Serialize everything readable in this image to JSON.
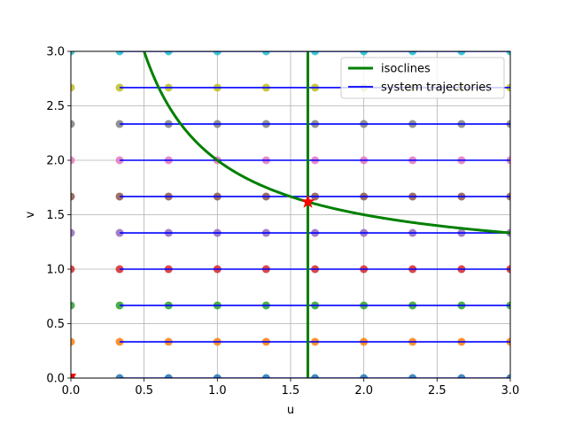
{
  "chart_data": {
    "type": "line",
    "xlabel": "u",
    "ylabel": "v",
    "xlim": [
      0,
      3
    ],
    "ylim": [
      0,
      3
    ],
    "xticks": [
      "0.0",
      "0.5",
      "1.0",
      "1.5",
      "2.0",
      "2.5",
      "3.0"
    ],
    "yticks": [
      "0.0",
      "0.5",
      "1.0",
      "1.5",
      "2.0",
      "2.5",
      "3.0"
    ],
    "grid": true,
    "legend_position": "top-right",
    "legend": [
      {
        "label": "isoclines",
        "color": "#008000"
      },
      {
        "label": "system trajectories",
        "color": "#0000ff"
      }
    ],
    "isoclines": {
      "vertical_line_u": 1.618,
      "hyperbola": "v = 1 + 1/u",
      "hyperbola_u_range": [
        0.5,
        3.0
      ],
      "color": "#008000"
    },
    "equilibrium": {
      "u": 1.618,
      "v": 1.618,
      "marker": "star",
      "color": "#ff0000"
    },
    "origin_marker": {
      "u": 0,
      "v": 0,
      "marker": "triangle-down",
      "color": "#ff0000"
    },
    "trajectories": {
      "color": "#0000ff",
      "u_range": [
        0.333,
        3.0
      ],
      "v_levels": [
        0,
        0.333,
        0.667,
        1.0,
        1.333,
        1.667,
        2.0,
        2.333,
        2.667,
        3.0
      ]
    },
    "grid_points": {
      "u_values": [
        0,
        0.333,
        0.667,
        1.0,
        1.333,
        1.667,
        2.0,
        2.333,
        2.667,
        3.0
      ],
      "v_values": [
        0,
        0.333,
        0.667,
        1.0,
        1.333,
        1.667,
        2.0,
        2.333,
        2.667,
        3.0
      ],
      "row_colors": [
        "#1f77b4",
        "#ff7f0e",
        "#2ca02c",
        "#d62728",
        "#9467bd",
        "#8c564b",
        "#e377c2",
        "#7f7f7f",
        "#bcbd22",
        "#17becf"
      ]
    }
  }
}
